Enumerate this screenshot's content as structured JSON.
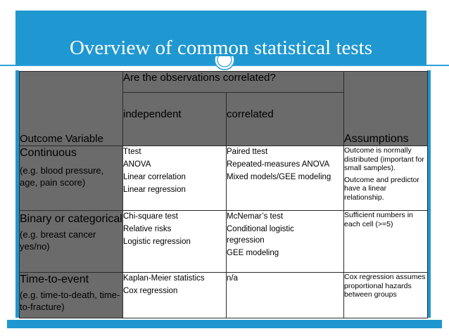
{
  "slide": {
    "title": "Overview of common statistical tests"
  },
  "table": {
    "header": {
      "question": "Are the observations correlated?",
      "outcome_variable": "Outcome Variable",
      "independent": "independent",
      "correlated": "correlated",
      "assumptions": "Assumptions"
    },
    "rows": [
      {
        "outcome": "Continuous",
        "outcome_example": "(e.g. blood pressure, age, pain score)",
        "independent": [
          "Ttest",
          "ANOVA",
          "Linear correlation",
          "Linear regression"
        ],
        "correlated": [
          "Paired ttest",
          "Repeated-measures ANOVA",
          "Mixed models/GEE modeling"
        ],
        "assumptions": [
          "Outcome is normally distributed (important for small samples).",
          "Outcome and predictor have a linear relationship."
        ]
      },
      {
        "outcome": "Binary or categorical",
        "outcome_example": "(e.g. breast cancer yes/no)",
        "independent": [
          "Chi-square test",
          "Relative risks",
          "Logistic regression"
        ],
        "correlated": [
          "McNemar’s test",
          "Conditional logistic regression",
          "GEE modeling"
        ],
        "assumptions": [
          "Sufficient numbers in each cell (>=5)"
        ]
      },
      {
        "outcome": "Time-to-event",
        "outcome_example": "(e.g. time-to-death, time-to-fracture)",
        "independent": [
          "Kaplan-Meier statistics",
          "Cox regression"
        ],
        "correlated": [
          "n/a"
        ],
        "assumptions": [
          "Cox regression assumes proportional hazards between groups"
        ]
      }
    ]
  },
  "colors": {
    "accent": "#1f97d1",
    "header_fill": "#6b6b6b",
    "body_fill": "#ffffff",
    "grid": "#2b2b2b"
  }
}
